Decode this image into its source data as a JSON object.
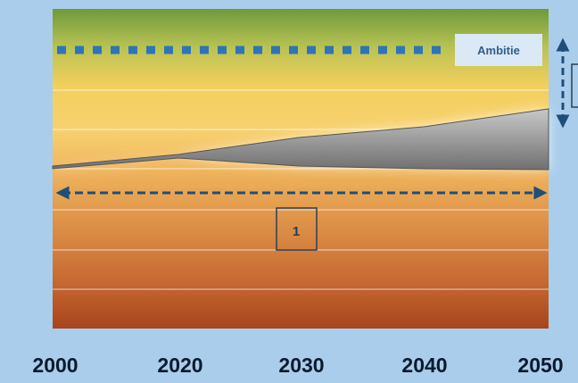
{
  "ambition_label": "Ambitie",
  "box_label": "1",
  "years": [
    "2000",
    "2020",
    "2030",
    "2040",
    "2050"
  ],
  "colors": {
    "background": "#a9cdeb",
    "arrow": "#1f4e79",
    "dots": "#2e75b6",
    "band_fill": "#8c8c8c"
  }
}
